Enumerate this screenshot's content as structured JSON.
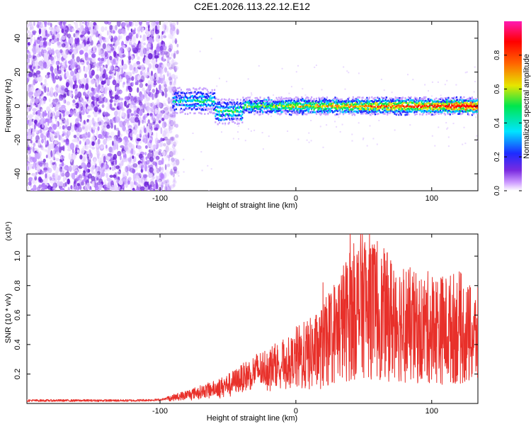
{
  "title": "C2E1.2026.113.22.12.E12",
  "chart_data": [
    {
      "type": "heatmap",
      "name": "spectrogram",
      "xlabel": "Height of straight line (km)",
      "ylabel": "Frequency (Hz)",
      "xlim": [
        -198,
        134
      ],
      "ylim": [
        -50,
        50
      ],
      "xticks": [
        -100,
        0,
        100
      ],
      "yticks": [
        -40,
        -20,
        0,
        20,
        40
      ],
      "xtick_labels": [
        "-100",
        "0",
        "100"
      ],
      "ytick_labels": [
        "-40",
        "-20",
        "0",
        "20",
        "40"
      ],
      "noise_region_x": [
        -198,
        -91
      ],
      "signal_center_frequency": 0,
      "colorbar": {
        "label": "Normalized spectral amplitude",
        "range": [
          0,
          1
        ],
        "ticks": [
          0.0,
          0.2,
          0.4,
          0.6,
          0.8
        ],
        "tick_labels": [
          "0.0",
          "0.2",
          "0.4",
          "0.6",
          "0.8"
        ],
        "colors": [
          "#ffffff",
          "#cc99ff",
          "#7a2be0",
          "#1e2bff",
          "#00e5ff",
          "#00e64d",
          "#e6e600",
          "#ff6600",
          "#ff0000",
          "#ff1ab3"
        ]
      }
    },
    {
      "type": "line",
      "name": "snr",
      "xlabel": "Height of straight line (km)",
      "ylabel": "SNR (10 * v/v)",
      "yscale_note": "(x10⁴)",
      "xlim": [
        -198,
        134
      ],
      "ylim": [
        0,
        1.15
      ],
      "xticks": [
        -100,
        0,
        100
      ],
      "yticks": [
        0.2,
        0.4,
        0.6,
        0.8,
        1.0
      ],
      "xtick_labels": [
        "-100",
        "0",
        "100"
      ],
      "ytick_labels": [
        "0.2",
        "0.4",
        "0.6",
        "0.8",
        "1.0"
      ],
      "color": "#e8302a",
      "envelope": {
        "x": [
          -198,
          -160,
          -120,
          -100,
          -90,
          -80,
          -70,
          -60,
          -50,
          -40,
          -30,
          -20,
          -10,
          0,
          10,
          20,
          25,
          30,
          40,
          50,
          60,
          70,
          80,
          90,
          100,
          110,
          120,
          128,
          134
        ],
        "y": [
          0.02,
          0.02,
          0.02,
          0.025,
          0.04,
          0.06,
          0.08,
          0.1,
          0.13,
          0.17,
          0.22,
          0.25,
          0.28,
          0.3,
          0.33,
          0.38,
          0.45,
          0.5,
          0.6,
          0.7,
          0.62,
          0.58,
          0.55,
          0.5,
          0.52,
          0.5,
          0.52,
          0.45,
          0.45
        ]
      },
      "spikes": [
        {
          "x": 40,
          "y": 1.15
        },
        {
          "x": 43,
          "y": 1.0
        },
        {
          "x": 48,
          "y": 0.93
        },
        {
          "x": 55,
          "y": 1.05
        },
        {
          "x": 60,
          "y": 1.1
        },
        {
          "x": 63,
          "y": 0.98
        },
        {
          "x": 72,
          "y": 0.9
        },
        {
          "x": 20,
          "y": 0.82
        },
        {
          "x": 128,
          "y": 0.8
        }
      ]
    }
  ]
}
